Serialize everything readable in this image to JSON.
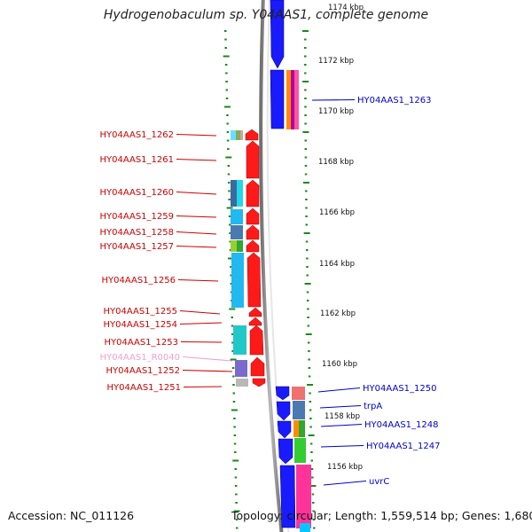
{
  "title": "Hydrogenobaculum sp. Y04AAS1, complete genome",
  "footer": {
    "accession": "Accession: NC_011126",
    "topology": "Topology: circular; Length: 1,559,514 bp; Genes: 1,680"
  },
  "axis_ticks": [
    "1174 kbp",
    "1172 kbp",
    "1170 kbp",
    "1168 kbp",
    "1166 kbp",
    "1164 kbp",
    "1162 kbp",
    "1160 kbp",
    "1158 kbp",
    "1156 kbp"
  ],
  "left_labels": [
    "HY04AAS1_1262",
    "HY04AAS1_1261",
    "HY04AAS1_1260",
    "HY04AAS1_1259",
    "HY04AAS1_1258",
    "HY04AAS1_1257",
    "HY04AAS1_1256",
    "HY04AAS1_1255",
    "HY04AAS1_1254",
    "HY04AAS1_1253",
    "HY04AAS1_R0040",
    "HY04AAS1_1252",
    "HY04AAS1_1251"
  ],
  "right_labels": [
    "HY04AAS1_1263",
    "HY04AAS1_1250",
    "trpA",
    "HY04AAS1_1248",
    "HY04AAS1_1247",
    "uvrC"
  ],
  "colors": {
    "reverse_strand_gene": "#ff1a1a",
    "forward_strand_gene": "#1a1aff",
    "left_label": "#cc0000",
    "rna_label": "#f2a0d0",
    "right_label": "#0000cc",
    "dots": "#1a8a1a",
    "backbone": "#8c8c8c"
  }
}
